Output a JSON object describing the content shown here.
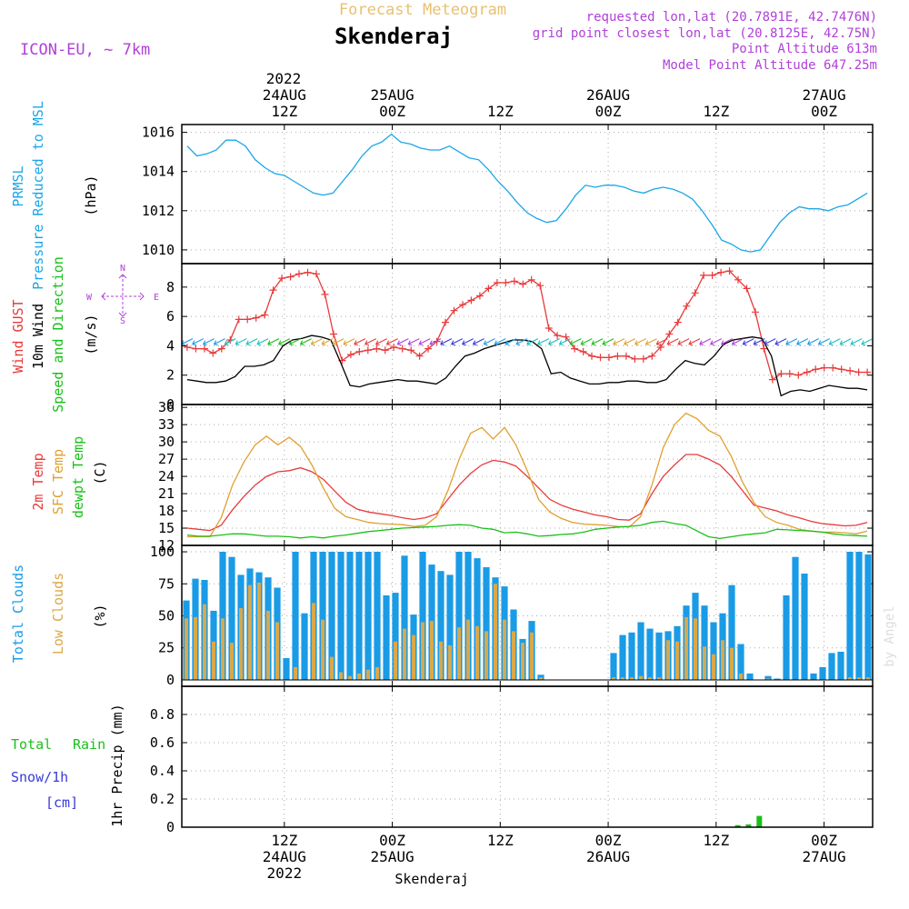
{
  "header": {
    "subtitle": "Forecast Meteogram",
    "location": "Skenderaj",
    "model": "ICON-EU, ~ 7km",
    "info_lines": [
      "requested lon,lat (20.7891E, 42.7476N)",
      "grid point closest lon,lat (20.8125E, 42.75N)",
      "Point Altitude 613m",
      "Model Point Altitude 647.25m"
    ],
    "footer": "Skenderaj",
    "watermark": "by Angel"
  },
  "time_axis": {
    "range_hours": [
      -0.5,
      63.5
    ],
    "top_year": "2022",
    "ticks": [
      {
        "h": 9,
        "lines": [
          "24AUG",
          "12Z"
        ]
      },
      {
        "h": 19,
        "lines": [
          "25AUG",
          "00Z"
        ]
      },
      {
        "h": 29,
        "lines": [
          "12Z"
        ]
      },
      {
        "h": 39,
        "lines": [
          "26AUG",
          "00Z"
        ]
      },
      {
        "h": 49,
        "lines": [
          "12Z"
        ]
      },
      {
        "h": 59,
        "lines": [
          "27AUG",
          "00Z"
        ]
      }
    ],
    "bottom_ticks": [
      {
        "h": 9,
        "lines": [
          "12Z",
          "24AUG",
          "2022"
        ]
      },
      {
        "h": 19,
        "lines": [
          "00Z",
          "25AUG"
        ]
      },
      {
        "h": 29,
        "lines": [
          "12Z"
        ]
      },
      {
        "h": 39,
        "lines": [
          "00Z",
          "26AUG"
        ]
      },
      {
        "h": 49,
        "lines": [
          "12Z"
        ]
      },
      {
        "h": 59,
        "lines": [
          "00Z",
          "27AUG"
        ]
      }
    ]
  },
  "colors": {
    "pressure": "#1aa6e8",
    "gust": "#e83a3a",
    "wind": "#000000",
    "temp2m": "#e83a3a",
    "sfc": "#e0a030",
    "dewpt": "#19c019",
    "clouds": "#1a9be6",
    "lowclouds": "#d9a84a",
    "rain": "#19c019",
    "snow": "#3a3ad8",
    "info": "#b040d8",
    "subtitle": "#e8c070"
  },
  "chart_data": [
    {
      "type": "line",
      "name": "pressure",
      "ylabels": [
        "PRMSL",
        "Pressure Reduced to MSL",
        "(hPa)"
      ],
      "ylim": [
        1009.3,
        1016.4
      ],
      "yticks": [
        1010,
        1012,
        1014,
        1016
      ],
      "grid": true,
      "series": [
        {
          "values": [
            1015.3,
            1014.8,
            1014.9,
            1015.1,
            1015.6,
            1015.6,
            1015.3,
            1014.6,
            1014.2,
            1013.9,
            1013.8,
            1013.5,
            1013.2,
            1012.9,
            1012.8,
            1012.9,
            1013.5,
            1014.1,
            1014.8,
            1015.3,
            1015.5,
            1015.9,
            1015.5,
            1015.4,
            1015.2,
            1015.1,
            1015.1,
            1015.3,
            1015.0,
            1014.7,
            1014.6,
            1014.1,
            1013.5,
            1013.0,
            1012.4,
            1011.9,
            1011.6,
            1011.4,
            1011.5,
            1012.1,
            1012.8,
            1013.3,
            1013.2,
            1013.3,
            1013.3,
            1013.2,
            1013.0,
            1012.9,
            1013.1,
            1013.2,
            1013.1,
            1012.9,
            1012.6,
            1012.0,
            1011.3,
            1010.5,
            1010.3,
            1010.0,
            1009.9,
            1010.0,
            1010.7,
            1011.4,
            1011.9,
            1012.2,
            1012.1,
            1012.1,
            1012.0,
            1012.2,
            1012.3,
            1012.6,
            1012.9
          ]
        }
      ]
    },
    {
      "type": "line",
      "name": "wind",
      "ylabels": [
        "Wind GUST",
        "10m Wind",
        "Speed and Direction",
        "(m/s)"
      ],
      "ylim": [
        0,
        9.6
      ],
      "yticks": [
        0,
        2,
        4,
        6,
        8
      ],
      "grid": true,
      "compass": {
        "n": "N",
        "s": "S",
        "w": "W",
        "e": "E"
      },
      "series": [
        {
          "name": "Wind GUST",
          "values": [
            3.9,
            3.8,
            3.8,
            3.5,
            3.8,
            4.4,
            5.8,
            5.8,
            5.9,
            6.1,
            7.8,
            8.6,
            8.7,
            8.9,
            9.0,
            8.9,
            7.5,
            4.8,
            3.0,
            3.4,
            3.6,
            3.7,
            3.8,
            3.7,
            3.9,
            3.8,
            3.7,
            3.3,
            3.8,
            4.3,
            5.6,
            6.4,
            6.8,
            7.1,
            7.4,
            7.9,
            8.3,
            8.3,
            8.4,
            8.2,
            8.5,
            8.1,
            5.2,
            4.7,
            4.6,
            3.8,
            3.6,
            3.3,
            3.2,
            3.2,
            3.3,
            3.3,
            3.1,
            3.1,
            3.3,
            3.9,
            4.8,
            5.6,
            6.7,
            7.6,
            8.8,
            8.8,
            9.0,
            9.1,
            8.5,
            7.9,
            6.3,
            3.8,
            1.7,
            2.1,
            2.1,
            2.0,
            2.2,
            2.4,
            2.5,
            2.5,
            2.4,
            2.3,
            2.2,
            2.2
          ]
        },
        {
          "name": "10m Wind",
          "values": [
            1.7,
            1.6,
            1.5,
            1.5,
            1.6,
            1.9,
            2.6,
            2.6,
            2.7,
            3.0,
            4.0,
            4.4,
            4.5,
            4.7,
            4.6,
            4.4,
            2.9,
            1.3,
            1.2,
            1.4,
            1.5,
            1.6,
            1.7,
            1.6,
            1.6,
            1.5,
            1.4,
            1.8,
            2.6,
            3.3,
            3.5,
            3.8,
            4.0,
            4.2,
            4.4,
            4.4,
            4.3,
            3.8,
            2.1,
            2.2,
            1.8,
            1.6,
            1.4,
            1.4,
            1.5,
            1.5,
            1.6,
            1.6,
            1.5,
            1.5,
            1.7,
            2.4,
            3.0,
            2.8,
            2.7,
            3.3,
            4.1,
            4.4,
            4.5,
            4.6,
            4.5,
            3.3,
            0.6,
            0.9,
            1.0,
            0.9,
            1.1,
            1.3,
            1.2,
            1.1,
            1.1,
            1.0
          ]
        }
      ]
    },
    {
      "type": "line",
      "name": "temperature",
      "ylabels": [
        "2m Temp",
        "SFC Temp",
        "dewpt Temp",
        "(C)"
      ],
      "ylim": [
        12,
        36.5
      ],
      "yticks": [
        12,
        15,
        18,
        21,
        24,
        27,
        30,
        33,
        36
      ],
      "grid": true,
      "series": [
        {
          "name": "2m Temp",
          "values": [
            15.0,
            14.8,
            14.6,
            15.5,
            18.2,
            20.5,
            22.5,
            24.0,
            24.8,
            25.0,
            25.5,
            24.8,
            23.5,
            21.5,
            19.5,
            18.3,
            17.8,
            17.5,
            17.2,
            16.8,
            16.5,
            16.8,
            17.5,
            20.0,
            22.5,
            24.5,
            26.0,
            26.8,
            26.5,
            25.8,
            24.0,
            22.0,
            20.0,
            19.0,
            18.3,
            17.8,
            17.3,
            17.0,
            16.5,
            16.4,
            17.5,
            21.0,
            24.0,
            26.0,
            27.8,
            27.8,
            27.0,
            26.0,
            24.0,
            21.5,
            19.0,
            18.5,
            18.0,
            17.3,
            16.8,
            16.2,
            15.8,
            15.6,
            15.4,
            15.5,
            16.0
          ]
        },
        {
          "name": "SFC Temp",
          "values": [
            13.5,
            13.5,
            13.5,
            16.8,
            22.5,
            26.5,
            29.5,
            31.0,
            29.5,
            30.8,
            29.2,
            26.0,
            22.0,
            18.5,
            17.0,
            16.5,
            16.0,
            15.8,
            15.7,
            15.6,
            15.3,
            15.5,
            17.0,
            21.5,
            27.0,
            31.5,
            32.5,
            30.5,
            32.5,
            29.5,
            25.0,
            20.0,
            17.8,
            16.7,
            16.0,
            15.7,
            15.6,
            15.5,
            15.3,
            15.2,
            17.0,
            22.5,
            29.0,
            33.0,
            35.0,
            34.0,
            32.0,
            31.0,
            27.5,
            23.0,
            19.5,
            17.0,
            16.0,
            15.5,
            14.8,
            14.5,
            14.3,
            14.3,
            14.2,
            14.0,
            14.5
          ]
        },
        {
          "name": "dewpt Temp",
          "values": [
            13.8,
            13.6,
            13.6,
            13.8,
            14.0,
            14.0,
            13.8,
            13.6,
            13.6,
            13.5,
            13.3,
            13.5,
            13.3,
            13.6,
            13.8,
            14.1,
            14.4,
            14.6,
            14.8,
            15.0,
            15.1,
            15.2,
            15.3,
            15.5,
            15.6,
            15.5,
            15.0,
            14.8,
            14.2,
            14.3,
            14.0,
            13.6,
            13.7,
            13.9,
            14.0,
            14.3,
            14.8,
            15.0,
            15.2,
            15.3,
            15.5,
            16.0,
            16.2,
            15.8,
            15.5,
            14.5,
            13.5,
            13.2,
            13.5,
            13.8,
            14.0,
            14.2,
            14.8,
            14.7,
            14.6,
            14.5,
            14.3,
            14.0,
            13.8,
            13.7,
            13.6
          ]
        }
      ]
    },
    {
      "type": "bar",
      "name": "clouds",
      "ylabels": [
        "Total Clouds",
        "Low Clouds",
        "(%)"
      ],
      "ylim": [
        -5,
        105
      ],
      "yticks": [
        0,
        25,
        50,
        75,
        100
      ],
      "grid": true,
      "series": [
        {
          "name": "Total Clouds",
          "values": [
            62,
            79,
            78,
            54,
            100,
            96,
            82,
            87,
            84,
            80,
            72,
            17,
            100,
            52,
            100,
            100,
            100,
            100,
            100,
            100,
            100,
            100,
            66,
            68,
            97,
            51,
            100,
            90,
            85,
            82,
            100,
            100,
            95,
            88,
            80,
            73,
            55,
            32,
            46,
            4,
            0,
            0,
            0,
            0,
            0,
            0,
            0,
            21,
            35,
            37,
            45,
            40,
            37,
            38,
            42,
            58,
            68,
            58,
            45,
            52,
            74,
            28,
            5,
            0,
            3,
            1,
            66,
            96,
            83,
            5,
            10,
            21,
            22,
            100,
            100,
            98
          ]
        },
        {
          "name": "Low Clouds",
          "values": [
            48,
            49,
            59,
            30,
            48,
            29,
            56,
            74,
            76,
            54,
            45,
            0,
            10,
            0,
            60,
            47,
            18,
            6,
            3,
            5,
            8,
            10,
            0,
            30,
            40,
            35,
            45,
            46,
            30,
            27,
            41,
            47,
            42,
            38,
            75,
            47,
            38,
            29,
            37,
            2,
            0,
            0,
            0,
            0,
            0,
            0,
            0,
            2,
            2,
            2,
            3,
            2,
            2,
            31,
            30,
            49,
            48,
            26,
            20,
            31,
            25,
            5,
            0,
            0,
            1,
            0,
            0,
            0,
            0,
            0,
            0,
            0,
            0,
            2,
            2,
            2
          ]
        }
      ]
    },
    {
      "type": "bar",
      "name": "precipitation",
      "ylabels": [
        "1hr Precip (mm)"
      ],
      "legend": [
        "Total",
        "Rain",
        "Snow/1h",
        "[cm]"
      ],
      "ylim": [
        0,
        1.0
      ],
      "yticks": [
        0,
        0.2,
        0.4,
        0.6,
        0.8
      ],
      "grid": true,
      "series": [
        {
          "name": "Rain",
          "values": [
            {
              "h": 51,
              "v": 0.015
            },
            {
              "h": 52,
              "v": 0.02
            },
            {
              "h": 53,
              "v": 0.08
            }
          ]
        }
      ]
    }
  ]
}
